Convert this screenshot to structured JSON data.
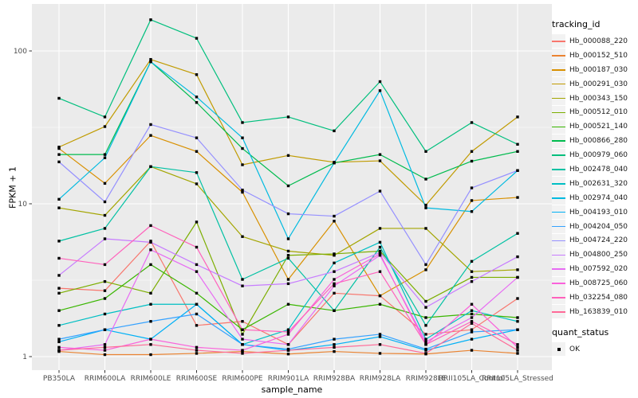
{
  "style": {
    "figure_bg": "#FFFFFF",
    "panel_bg": "#EBEBEB",
    "grid_color": "#FFFFFF",
    "tick_text_color": "#4D4D4D",
    "tick_mark_color": "#333333",
    "axis_title_color": "#000000",
    "point_color": "#000000",
    "legend_key_bg": "#F2F2F2"
  },
  "chart_data": {
    "type": "line",
    "title": "",
    "xlabel": "sample_name",
    "ylabel": "FPKM + 1",
    "x_type": "categorical",
    "y_scale": "log10",
    "y_ticks": [
      1,
      10,
      100
    ],
    "y_minor_ticks": [
      3.162,
      31.62
    ],
    "ylim": [
      0.79,
      198
    ],
    "grid": "white major+minor on gray panel",
    "legend_position": "right",
    "legend_title": "tracking_id",
    "point_marker": "filled-black-square",
    "categories": [
      "PB350LA",
      "RRIM600LA",
      "RRIM600LE",
      "RRIM600SE",
      "RRIM600PE",
      "RRIM901LA",
      "RRIM928BA",
      "RRIM928LA",
      "RRIM928LE",
      "RRII105LA_Control",
      "RRII105LA_Stressed"
    ],
    "series": [
      {
        "name": "Hb_000088_220",
        "color": "#F8766D",
        "values": [
          2.8,
          2.7,
          5.7,
          1.6,
          1.7,
          1.2,
          2.6,
          2.5,
          1.4,
          1.5,
          2.4
        ]
      },
      {
        "name": "Hb_000152_510",
        "color": "#EA8331",
        "values": [
          1.08,
          1.03,
          1.03,
          1.05,
          1.08,
          1.04,
          1.08,
          1.05,
          1.04,
          1.1,
          1.05
        ]
      },
      {
        "name": "Hb_000187_030",
        "color": "#D89000",
        "values": [
          23,
          13.6,
          28,
          22,
          11.9,
          3.2,
          7.7,
          2.5,
          3.7,
          10.5,
          11
        ]
      },
      {
        "name": "Hb_000291_030",
        "color": "#C09B00",
        "values": [
          23.5,
          32,
          88,
          70,
          18,
          20.7,
          18.7,
          19.1,
          9.8,
          22,
          37
        ]
      },
      {
        "name": "Hb_000343_150",
        "color": "#A3A500",
        "values": [
          9.4,
          8.4,
          17.5,
          13.5,
          6.1,
          4.9,
          4.6,
          6.9,
          6.9,
          3.6,
          3.7
        ]
      },
      {
        "name": "Hb_000512_010",
        "color": "#7CAE00",
        "values": [
          2.6,
          3.1,
          2.6,
          7.6,
          1.4,
          4.6,
          4.7,
          4.9,
          2.3,
          3.3,
          3.3
        ]
      },
      {
        "name": "Hb_000521_140",
        "color": "#39B600",
        "values": [
          2.0,
          2.4,
          4.0,
          2.6,
          1.5,
          2.2,
          2.0,
          2.2,
          1.8,
          1.9,
          1.8
        ]
      },
      {
        "name": "Hb_000866_280",
        "color": "#00BB4E",
        "values": [
          21,
          21,
          85,
          46,
          23,
          13.1,
          18.5,
          21,
          14.5,
          19,
          22
        ]
      },
      {
        "name": "Hb_000979_060",
        "color": "#00BF7D",
        "values": [
          49,
          37,
          160,
          121,
          34,
          37,
          30,
          63,
          22,
          34,
          24.5
        ]
      },
      {
        "name": "Hb_002478_040",
        "color": "#00C1A3",
        "values": [
          5.7,
          6.9,
          17.5,
          16,
          3.2,
          4.4,
          2.0,
          5.2,
          1.6,
          4.2,
          6.4
        ]
      },
      {
        "name": "Hb_002631_320",
        "color": "#00BFC4",
        "values": [
          1.6,
          1.9,
          2.2,
          2.2,
          1.2,
          1.5,
          4.1,
          5.6,
          1.3,
          2.0,
          1.7
        ]
      },
      {
        "name": "Hb_002974_040",
        "color": "#00BAE0",
        "values": [
          10.7,
          20,
          85,
          50,
          27,
          5.9,
          18.5,
          55,
          9.4,
          8.9,
          16.5
        ]
      },
      {
        "name": "Hb_004193_010",
        "color": "#00B0F6",
        "values": [
          1.25,
          1.5,
          1.3,
          2.2,
          1.2,
          1.1,
          1.2,
          1.35,
          1.1,
          1.3,
          1.5
        ]
      },
      {
        "name": "Hb_004204_050",
        "color": "#35A2FF",
        "values": [
          1.3,
          1.5,
          1.7,
          1.9,
          1.2,
          1.12,
          1.3,
          1.4,
          1.12,
          1.45,
          1.5
        ]
      },
      {
        "name": "Hb_004724_220",
        "color": "#9590FF",
        "values": [
          18.8,
          10.3,
          33,
          27,
          12.3,
          8.6,
          8.3,
          12.1,
          4.0,
          12.7,
          16.5
        ]
      },
      {
        "name": "Hb_004800_250",
        "color": "#C77CFF",
        "values": [
          3.4,
          5.9,
          5.6,
          4.0,
          2.9,
          3.0,
          3.6,
          4.8,
          2.1,
          3.1,
          4.5
        ]
      },
      {
        "name": "Hb_007592_020",
        "color": "#E76BF3",
        "values": [
          1.1,
          1.2,
          5.0,
          3.6,
          1.3,
          1.2,
          2.9,
          4.6,
          1.25,
          1.8,
          3.3
        ]
      },
      {
        "name": "Hb_008725_060",
        "color": "#FA62DB",
        "values": [
          1.15,
          1.1,
          1.3,
          1.15,
          1.1,
          1.4,
          3.2,
          4.7,
          1.2,
          2.2,
          1.15
        ]
      },
      {
        "name": "Hb_032254_080",
        "color": "#FF62BC",
        "values": [
          4.4,
          4.0,
          7.2,
          5.2,
          1.5,
          1.45,
          3.0,
          3.6,
          1.2,
          1.7,
          1.2
        ]
      },
      {
        "name": "Hb_163839_010",
        "color": "#FF6A98",
        "values": [
          1.1,
          1.15,
          1.2,
          1.1,
          1.05,
          1.1,
          1.15,
          1.2,
          1.05,
          1.65,
          1.1
        ]
      }
    ],
    "quant_legend": {
      "title": "quant_status",
      "items": [
        {
          "label": "OK",
          "marker": "filled-black-square"
        }
      ]
    }
  }
}
